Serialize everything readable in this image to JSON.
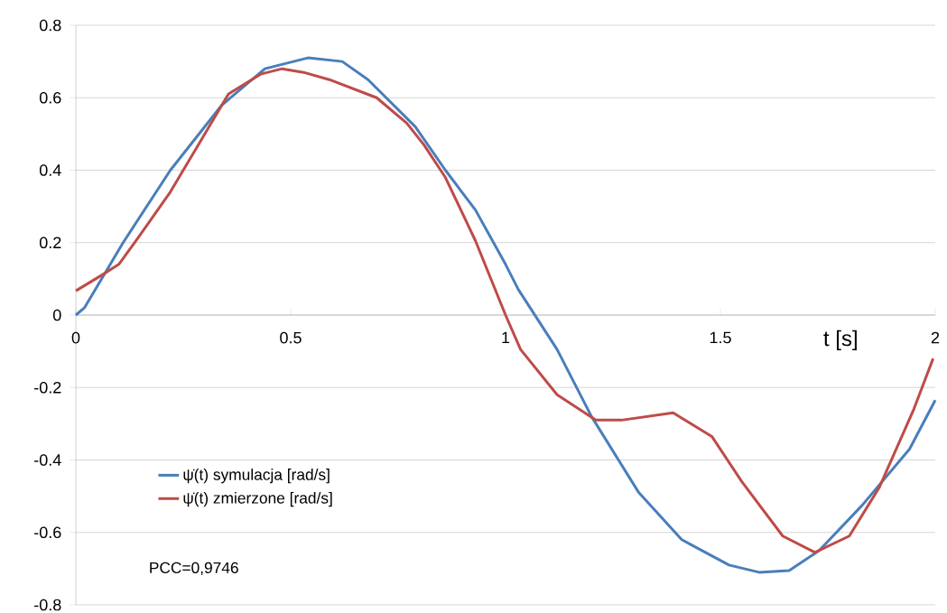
{
  "chart_data": {
    "type": "line",
    "xlabel": "t [s]",
    "xlim": [
      0,
      2
    ],
    "xticks": [
      0,
      0.5,
      1,
      1.5,
      2
    ],
    "ylim": [
      -0.8,
      0.8
    ],
    "yticks": [
      -0.8,
      -0.6,
      -0.4,
      -0.2,
      0,
      0.2,
      0.4,
      0.6,
      0.8
    ],
    "grid": "y",
    "legend": "bottom left",
    "annotations": [
      "PCC=0,9746"
    ],
    "series": [
      {
        "name": "ψ̇(t) symulacja [rad/s]",
        "color": "#4a7ebb",
        "x": [
          0,
          0.02,
          0.11,
          0.22,
          0.34,
          0.44,
          0.54,
          0.62,
          0.68,
          0.79,
          0.86,
          0.93,
          1.0,
          1.03,
          1.12,
          1.2,
          1.31,
          1.41,
          1.52,
          1.59,
          1.66,
          1.73,
          1.83,
          1.94,
          2.0
        ],
        "values": [
          0,
          0.02,
          0.2,
          0.4,
          0.58,
          0.68,
          0.71,
          0.7,
          0.65,
          0.52,
          0.4,
          0.29,
          0.14,
          0.07,
          -0.095,
          -0.28,
          -0.49,
          -0.62,
          -0.69,
          -0.71,
          -0.705,
          -0.65,
          -0.525,
          -0.37,
          -0.235
        ]
      },
      {
        "name": "ψ̇(t) zmierzone [rad/s]",
        "color": "#be4b48",
        "x": [
          0,
          0.06,
          0.1,
          0.14,
          0.22,
          0.29,
          0.355,
          0.43,
          0.48,
          0.53,
          0.59,
          0.7,
          0.77,
          0.81,
          0.86,
          0.93,
          1.0,
          1.035,
          1.12,
          1.21,
          1.27,
          1.39,
          1.48,
          1.55,
          1.645,
          1.72,
          1.8,
          1.87,
          1.95,
          1.995
        ],
        "values": [
          0.067,
          0.11,
          0.14,
          0.205,
          0.34,
          0.48,
          0.61,
          0.665,
          0.68,
          0.67,
          0.65,
          0.6,
          0.53,
          0.47,
          0.38,
          0.205,
          0,
          -0.095,
          -0.22,
          -0.29,
          -0.29,
          -0.27,
          -0.335,
          -0.46,
          -0.61,
          -0.655,
          -0.61,
          -0.475,
          -0.26,
          -0.12
        ]
      }
    ]
  }
}
